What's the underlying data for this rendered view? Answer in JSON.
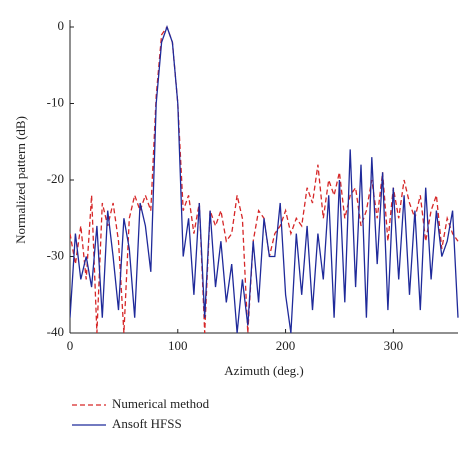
{
  "chart_data": {
    "type": "line",
    "xlabel": "Azimuth (deg.)",
    "ylabel": "Normalized pattern (dB)",
    "x": [
      0,
      5,
      10,
      15,
      20,
      25,
      30,
      35,
      40,
      45,
      50,
      55,
      60,
      65,
      70,
      75,
      80,
      85,
      90,
      95,
      100,
      105,
      110,
      115,
      120,
      125,
      130,
      135,
      140,
      145,
      150,
      155,
      160,
      165,
      170,
      175,
      180,
      185,
      190,
      195,
      200,
      205,
      210,
      215,
      220,
      225,
      230,
      235,
      240,
      245,
      250,
      255,
      260,
      265,
      270,
      275,
      280,
      285,
      290,
      295,
      300,
      305,
      310,
      315,
      320,
      325,
      330,
      335,
      340,
      345,
      350,
      355,
      360
    ],
    "series": [
      {
        "name": "Numerical method",
        "color": "#d62728",
        "dash": true,
        "values": [
          -27,
          -31,
          -26,
          -33,
          -22,
          -40,
          -23,
          -26,
          -23,
          -28,
          -40,
          -25,
          -22,
          -24,
          -22,
          -24,
          -9,
          -1,
          0,
          -2,
          -10,
          -24,
          -22,
          -27,
          -23,
          -40,
          -24,
          -26,
          -24,
          -28,
          -27,
          -22,
          -25,
          -40,
          -28,
          -24,
          -25,
          -30,
          -27,
          -26,
          -24,
          -27,
          -25,
          -26,
          -21,
          -23,
          -18,
          -25,
          -20,
          -22,
          -19,
          -25,
          -22,
          -21,
          -26,
          -24,
          -20,
          -25,
          -19,
          -28,
          -21,
          -25,
          -20,
          -23,
          -25,
          -22,
          -28,
          -24,
          -22,
          -29,
          -25,
          -27,
          -28
        ]
      },
      {
        "name": "Ansoft HFSS",
        "color": "#1f2a9a",
        "dash": false,
        "values": [
          -38,
          -27,
          -33,
          -30,
          -34,
          -26,
          -38,
          -24,
          -30,
          -37,
          -25,
          -29,
          -38,
          -23,
          -26,
          -32,
          -10,
          -2,
          0,
          -2,
          -10,
          -30,
          -25,
          -35,
          -23,
          -38,
          -24,
          -34,
          -28,
          -36,
          -31,
          -40,
          -33,
          -39,
          -28,
          -36,
          -25,
          -30,
          -30,
          -23,
          -35,
          -40,
          -27,
          -35,
          -26,
          -37,
          -27,
          -33,
          -22,
          -38,
          -20,
          -36,
          -16,
          -34,
          -18,
          -38,
          -17,
          -31,
          -19,
          -37,
          -21,
          -33,
          -22,
          -35,
          -24,
          -37,
          -21,
          -33,
          -24,
          -30,
          -28,
          -24,
          -38
        ]
      }
    ],
    "xlim": [
      0,
      360
    ],
    "xticks": [
      0,
      100,
      200,
      300
    ],
    "ylim": [
      -40,
      0
    ],
    "yticks": [
      0,
      -10,
      -20,
      -30,
      -40
    ],
    "grid": false,
    "legend": "bottom"
  }
}
